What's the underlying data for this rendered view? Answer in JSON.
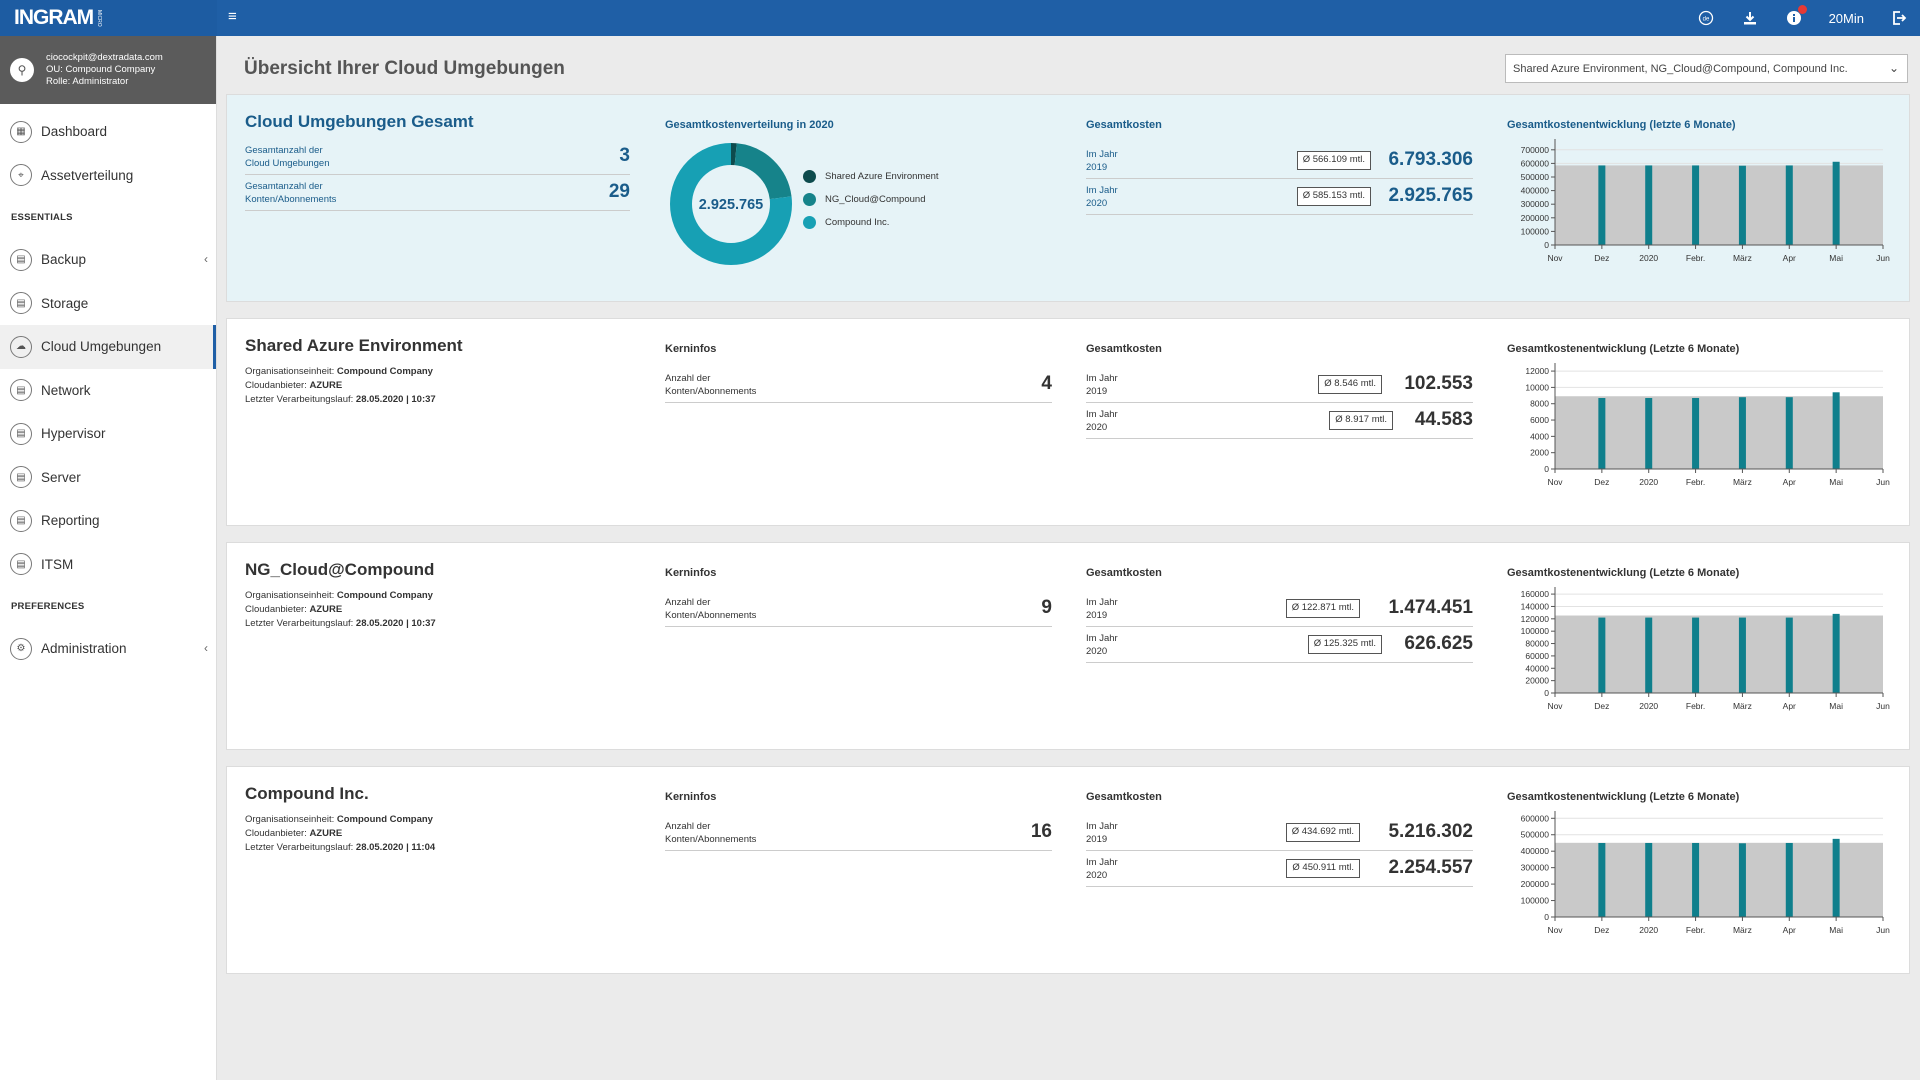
{
  "app": {
    "logo": "INGRAM",
    "logo_sub": "MICRO",
    "session_timer": "20Min"
  },
  "user": {
    "email": "ciocockpit@dextradata.com",
    "ou": "OU: Compound Company",
    "role": "Rolle: Administrator"
  },
  "sidebar": {
    "items_top": [
      {
        "label": "Dashboard",
        "icon": "dashboard-icon"
      },
      {
        "label": "Assetverteilung",
        "icon": "map-pin-icon"
      }
    ],
    "heading_essentials": "ESSENTIALS",
    "items_essentials": [
      {
        "label": "Backup",
        "icon": "backup-icon",
        "chevron": true
      },
      {
        "label": "Storage",
        "icon": "storage-icon"
      },
      {
        "label": "Cloud Umgebungen",
        "icon": "cloud-icon",
        "active": true
      },
      {
        "label": "Network",
        "icon": "network-icon"
      },
      {
        "label": "Hypervisor",
        "icon": "hypervisor-icon"
      },
      {
        "label": "Server",
        "icon": "server-icon"
      },
      {
        "label": "Reporting",
        "icon": "report-icon"
      },
      {
        "label": "ITSM",
        "icon": "itsm-icon"
      }
    ],
    "heading_preferences": "PREFERENCES",
    "items_preferences": [
      {
        "label": "Administration",
        "icon": "settings-icon",
        "chevron": true
      }
    ]
  },
  "page": {
    "title": "Übersicht Ihrer Cloud Umgebungen",
    "env_select": "Shared Azure Environment, NG_Cloud@Compound, Compound Inc."
  },
  "summary": {
    "title": "Cloud Umgebungen Gesamt",
    "stat1_label_1": "Gesamtanzahl der",
    "stat1_label_2": "Cloud Umgebungen",
    "stat1_value": "3",
    "stat2_label_1": "Gesamtanzahl der",
    "stat2_label_2": "Konten/Abonnements",
    "stat2_value": "29",
    "donut_title": "Gesamtkostenverteilung in 2020",
    "donut_center": "2.925.765",
    "donut_legend": [
      {
        "name": "Shared Azure Environment",
        "color": "#0d4b4d",
        "value": 44583
      },
      {
        "name": "NG_Cloud@Compound",
        "color": "#16838a",
        "value": 626625
      },
      {
        "name": "Compound Inc.",
        "color": "#17a0b4",
        "value": 2254557
      }
    ],
    "costs_title": "Gesamtkosten",
    "cost_rows": [
      {
        "l1": "Im Jahr",
        "l2": "2019",
        "avg": "Ø 566.109 mtl.",
        "value": "6.793.306"
      },
      {
        "l1": "Im Jahr",
        "l2": "2020",
        "avg": "Ø 585.153 mtl.",
        "value": "2.925.765"
      }
    ],
    "chart_title": "Gesamtkostenentwicklung (letzte 6 Monate)"
  },
  "env_cards": [
    {
      "title": "Shared Azure Environment",
      "org_label": "Organisationseinheit:",
      "org": "Compound Company",
      "cloud_label": "Cloudanbieter:",
      "cloud": "AZURE",
      "run_label": "Letzter Verarbeitungslauf:",
      "run": "28.05.2020 | 10:37",
      "kern_title": "Kerninfos",
      "kern_l1": "Anzahl der",
      "kern_l2": "Konten/Abonnements",
      "kern_value": "4",
      "costs_title": "Gesamtkosten",
      "cost_rows": [
        {
          "l1": "Im Jahr",
          "l2": "2019",
          "avg": "Ø 8.546 mtl.",
          "value": "102.553"
        },
        {
          "l1": "Im Jahr",
          "l2": "2020",
          "avg": "Ø 8.917 mtl.",
          "value": "44.583"
        }
      ],
      "chart_title": "Gesamtkostenentwicklung (Letzte 6 Monate)"
    },
    {
      "title": "NG_Cloud@Compound",
      "org_label": "Organisationseinheit:",
      "org": "Compound Company",
      "cloud_label": "Cloudanbieter:",
      "cloud": "AZURE",
      "run_label": "Letzter Verarbeitungslauf:",
      "run": "28.05.2020 | 10:37",
      "kern_title": "Kerninfos",
      "kern_l1": "Anzahl der",
      "kern_l2": "Konten/Abonnements",
      "kern_value": "9",
      "costs_title": "Gesamtkosten",
      "cost_rows": [
        {
          "l1": "Im Jahr",
          "l2": "2019",
          "avg": "Ø 122.871 mtl.",
          "value": "1.474.451"
        },
        {
          "l1": "Im Jahr",
          "l2": "2020",
          "avg": "Ø 125.325 mtl.",
          "value": "626.625"
        }
      ],
      "chart_title": "Gesamtkostenentwicklung (Letzte 6 Monate)"
    },
    {
      "title": "Compound Inc.",
      "org_label": "Organisationseinheit:",
      "org": "Compound Company",
      "cloud_label": "Cloudanbieter:",
      "cloud": "AZURE",
      "run_label": "Letzter Verarbeitungslauf:",
      "run": "28.05.2020 | 11:04",
      "kern_title": "Kerninfos",
      "kern_l1": "Anzahl der",
      "kern_l2": "Konten/Abonnements",
      "kern_value": "16",
      "costs_title": "Gesamtkosten",
      "cost_rows": [
        {
          "l1": "Im Jahr",
          "l2": "2019",
          "avg": "Ø 434.692 mtl.",
          "value": "5.216.302"
        },
        {
          "l1": "Im Jahr",
          "l2": "2020",
          "avg": "Ø 450.911 mtl.",
          "value": "2.254.557"
        }
      ],
      "chart_title": "Gesamtkostenentwicklung (Letzte 6 Monate)"
    }
  ],
  "colors": {
    "topbar": "#1f5fa6",
    "bar": "#0f7f8c",
    "band": "#c9c9c9"
  },
  "chart_data": [
    {
      "type": "bar",
      "title": "Gesamtkostenentwicklung (letzte 6 Monate)",
      "x_ticks": [
        "Nov",
        "Dez",
        "2020",
        "Febr.",
        "März",
        "Apr",
        "Mai",
        "Jun"
      ],
      "categories": [
        "Dez",
        "2020",
        "Febr.",
        "März",
        "Apr",
        "Mai"
      ],
      "values": [
        585000,
        585000,
        585000,
        583000,
        585000,
        612000
      ],
      "band": 585153,
      "ylim": [
        0,
        750000
      ],
      "y_ticks": [
        0,
        100000,
        200000,
        300000,
        400000,
        500000,
        600000,
        700000
      ]
    },
    {
      "type": "bar",
      "title": "Gesamtkostenentwicklung (Letzte 6 Monate)",
      "x_ticks": [
        "Nov",
        "Dez",
        "2020",
        "Febr.",
        "März",
        "Apr",
        "Mai",
        "Jun"
      ],
      "categories": [
        "Dez",
        "2020",
        "Febr.",
        "März",
        "Apr",
        "Mai"
      ],
      "values": [
        8700,
        8700,
        8700,
        8800,
        8800,
        9400
      ],
      "band": 8917,
      "ylim": [
        0,
        12500
      ],
      "y_ticks": [
        0,
        2000,
        4000,
        6000,
        8000,
        10000,
        12000
      ]
    },
    {
      "type": "bar",
      "title": "Gesamtkostenentwicklung (Letzte 6 Monate)",
      "x_ticks": [
        "Nov",
        "Dez",
        "2020",
        "Febr.",
        "März",
        "Apr",
        "Mai",
        "Jun"
      ],
      "categories": [
        "Dez",
        "2020",
        "Febr.",
        "März",
        "Apr",
        "Mai"
      ],
      "values": [
        122000,
        122000,
        122000,
        122000,
        122000,
        128000
      ],
      "band": 125325,
      "ylim": [
        0,
        165000
      ],
      "y_ticks": [
        0,
        20000,
        40000,
        60000,
        80000,
        100000,
        120000,
        140000,
        160000
      ]
    },
    {
      "type": "bar",
      "title": "Gesamtkostenentwicklung (Letzte 6 Monate)",
      "x_ticks": [
        "Nov",
        "Dez",
        "2020",
        "Febr.",
        "März",
        "Apr",
        "Mai",
        "Jun"
      ],
      "categories": [
        "Dez",
        "2020",
        "Febr.",
        "März",
        "Apr",
        "Mai"
      ],
      "values": [
        450000,
        450000,
        450000,
        448000,
        450000,
        475000
      ],
      "band": 450911,
      "ylim": [
        0,
        620000
      ],
      "y_ticks": [
        0,
        100000,
        200000,
        300000,
        400000,
        500000,
        600000
      ]
    }
  ]
}
